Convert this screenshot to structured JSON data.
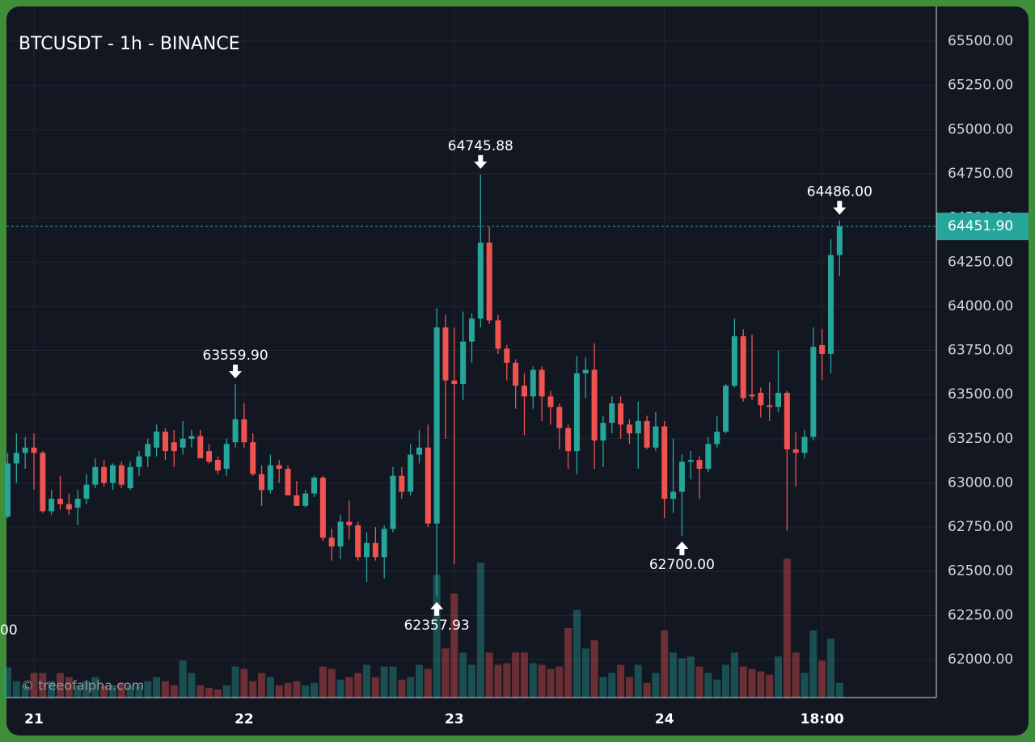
{
  "chart_data": {
    "type": "candlestick",
    "title": "BTCUSDT - 1h - BINANCE",
    "watermark": "© treeofalpha.com",
    "edge_text": "00",
    "colors": {
      "up": "#26a69a",
      "down": "#ef5350"
    },
    "x": [
      -3,
      -2,
      -1,
      0,
      1,
      2,
      3,
      4,
      5,
      6,
      7,
      8,
      9,
      10,
      11,
      12,
      13,
      14,
      15,
      16,
      17,
      18,
      19,
      20,
      21,
      22,
      23,
      24,
      25,
      26,
      27,
      28,
      29,
      30,
      31,
      32,
      33,
      34,
      35,
      36,
      37,
      38,
      39,
      40,
      41,
      42,
      43,
      44,
      45,
      46,
      47,
      48,
      49,
      50,
      51,
      52,
      53,
      54,
      55,
      56,
      57,
      58,
      59,
      60,
      61,
      62,
      63,
      64,
      65,
      66,
      67,
      68,
      69,
      70,
      71,
      72,
      73,
      74,
      75,
      76,
      77,
      78,
      79,
      80,
      81,
      82,
      83,
      84,
      85,
      86,
      87,
      88,
      89,
      90,
      91,
      92
    ],
    "open": [
      62810,
      63110,
      63170,
      63200,
      63170,
      62840,
      62910,
      62880,
      62860,
      62910,
      62990,
      63090,
      63000,
      63100,
      62970,
      63090,
      63150,
      63200,
      63290,
      63230,
      63200,
      63250,
      63265,
      63180,
      63130,
      63080,
      63230,
      63360,
      63230,
      63050,
      62960,
      63100,
      63080,
      62930,
      62870,
      62940,
      63030,
      62690,
      62640,
      62780,
      62760,
      62580,
      62660,
      62580,
      62740,
      63040,
      62950,
      63160,
      63200,
      62770,
      63880,
      63580,
      63560,
      63800,
      63930,
      64360,
      63920,
      63760,
      63680,
      63550,
      63490,
      63640,
      63490,
      63430,
      63310,
      63180,
      63620,
      63640,
      63240,
      63340,
      63450,
      63330,
      63280,
      63350,
      63200,
      63320,
      62910,
      62950,
      63120,
      63130,
      63080,
      63220,
      63290,
      63550,
      63830,
      63500,
      63510,
      63440,
      63430,
      63510,
      63190,
      63170,
      63260,
      63780,
      63730,
      64290
    ],
    "high": [
      63170,
      63280,
      63260,
      63280,
      63180,
      62960,
      63040,
      62940,
      62960,
      63050,
      63140,
      63130,
      63110,
      63120,
      63120,
      63180,
      63250,
      63330,
      63310,
      63300,
      63350,
      63300,
      63300,
      63220,
      63150,
      63250,
      63559.9,
      63450,
      63280,
      63100,
      63160,
      63130,
      63100,
      63010,
      62960,
      63040,
      63040,
      62740,
      62820,
      62900,
      62780,
      62720,
      62750,
      62760,
      63090,
      63090,
      63220,
      63300,
      63330,
      63990,
      63950,
      63880,
      63970,
      63960,
      64745.88,
      64450,
      63950,
      63780,
      63700,
      63620,
      63660,
      63660,
      63520,
      63450,
      63330,
      63720,
      63710,
      63790,
      63380,
      63490,
      63490,
      63360,
      63460,
      63380,
      63400,
      63350,
      63250,
      63160,
      63180,
      63150,
      63260,
      63380,
      63560,
      63930,
      63870,
      63840,
      63540,
      63570,
      63750,
      63520,
      63290,
      63300,
      63880,
      63870,
      64380,
      64486
    ],
    "low": [
      62800,
      63000,
      63080,
      62960,
      62830,
      62820,
      62850,
      62820,
      62760,
      62880,
      62970,
      62980,
      62960,
      62970,
      62960,
      63040,
      63090,
      63150,
      63130,
      63090,
      63160,
      63200,
      63140,
      63110,
      63050,
      63040,
      63200,
      63200,
      63040,
      62870,
      62940,
      63000,
      62930,
      62870,
      62860,
      62920,
      62670,
      62560,
      62570,
      62680,
      62560,
      62440,
      62560,
      62460,
      62720,
      62910,
      62930,
      63110,
      62750,
      62357.93,
      63250,
      62540,
      63470,
      63680,
      63880,
      63900,
      63730,
      63580,
      63420,
      63270,
      63420,
      63350,
      63330,
      63190,
      63080,
      63050,
      63480,
      63080,
      63090,
      63280,
      63250,
      63220,
      63080,
      63190,
      63180,
      62800,
      62830,
      62700,
      63020,
      62910,
      63060,
      63200,
      63280,
      63540,
      63460,
      63470,
      63370,
      63350,
      63400,
      62730,
      62980,
      63140,
      63240,
      63580,
      63620,
      64170
    ],
    "close": [
      63110,
      63170,
      63200,
      63170,
      62840,
      62910,
      62880,
      62850,
      62910,
      62990,
      63090,
      63000,
      63100,
      62990,
      63090,
      63150,
      63220,
      63290,
      63180,
      63180,
      63250,
      63265,
      63140,
      63120,
      63070,
      63220,
      63360,
      63230,
      63050,
      62960,
      63100,
      63080,
      62930,
      62870,
      62940,
      63030,
      62690,
      62640,
      62780,
      62760,
      62580,
      62660,
      62580,
      62740,
      63040,
      62950,
      63160,
      63200,
      62770,
      63880,
      63580,
      63560,
      63800,
      63930,
      64360,
      63920,
      63760,
      63680,
      63550,
      63490,
      63640,
      63490,
      63430,
      63310,
      63180,
      63620,
      63640,
      63240,
      63340,
      63450,
      63330,
      63280,
      63350,
      63200,
      63320,
      62910,
      62950,
      63120,
      63130,
      63080,
      63220,
      63290,
      63550,
      63830,
      63480,
      63490,
      63440,
      63430,
      63510,
      63190,
      63170,
      63260,
      63770,
      63730,
      64290,
      64451.9
    ],
    "volume": [
      37,
      20,
      15,
      30,
      30,
      20,
      30,
      25,
      15,
      20,
      25,
      15,
      15,
      18,
      15,
      15,
      20,
      25,
      20,
      15,
      45,
      30,
      15,
      12,
      10,
      15,
      38,
      35,
      20,
      30,
      25,
      15,
      18,
      20,
      15,
      18,
      38,
      35,
      22,
      25,
      30,
      40,
      25,
      38,
      38,
      22,
      25,
      40,
      35,
      150,
      60,
      127,
      55,
      40,
      165,
      55,
      40,
      42,
      55,
      55,
      42,
      40,
      35,
      38,
      85,
      107,
      60,
      70,
      25,
      30,
      40,
      25,
      40,
      18,
      30,
      82,
      55,
      48,
      50,
      38,
      30,
      22,
      40,
      55,
      38,
      35,
      32,
      28,
      50,
      170,
      55,
      30,
      82,
      45,
      72,
      18
    ],
    "xlim": [
      -3.14,
      103.05
    ],
    "xticks": [
      {
        "value": 0,
        "label": "21"
      },
      {
        "value": 24,
        "label": "22"
      },
      {
        "value": 48,
        "label": "23"
      },
      {
        "value": 72,
        "label": "24"
      },
      {
        "value": 90,
        "label": "18:00"
      }
    ],
    "ylim": [
      61785,
      65697
    ],
    "yticks": [
      {
        "value": 62000,
        "label": "62000.00"
      },
      {
        "value": 62250,
        "label": "62250.00"
      },
      {
        "value": 62500,
        "label": "62500.00"
      },
      {
        "value": 62750,
        "label": "62750.00"
      },
      {
        "value": 63000,
        "label": "63000.00"
      },
      {
        "value": 63250,
        "label": "63250.00"
      },
      {
        "value": 63500,
        "label": "63500.00"
      },
      {
        "value": 63750,
        "label": "63750.00"
      },
      {
        "value": 64000,
        "label": "64000.00"
      },
      {
        "value": 64250,
        "label": "64250.00"
      },
      {
        "value": 64500,
        "label": "64500.00"
      },
      {
        "value": 64750,
        "label": "64750.00"
      },
      {
        "value": 65000,
        "label": "65000.00"
      },
      {
        "value": 65250,
        "label": "65250.00"
      },
      {
        "value": 65500,
        "label": "65500.00"
      }
    ],
    "grid": true,
    "last_price": {
      "value": 64451.9,
      "label": "64451.90"
    },
    "annotations": [
      {
        "value": 63559.9,
        "label": "63559.90"
      },
      {
        "value": 62357.93,
        "label": "62357.93"
      },
      {
        "value": 64745.88,
        "label": "64745.88"
      },
      {
        "value": 62700,
        "label": "62700.00"
      },
      {
        "value": 64486,
        "label": "64486.00"
      }
    ]
  }
}
